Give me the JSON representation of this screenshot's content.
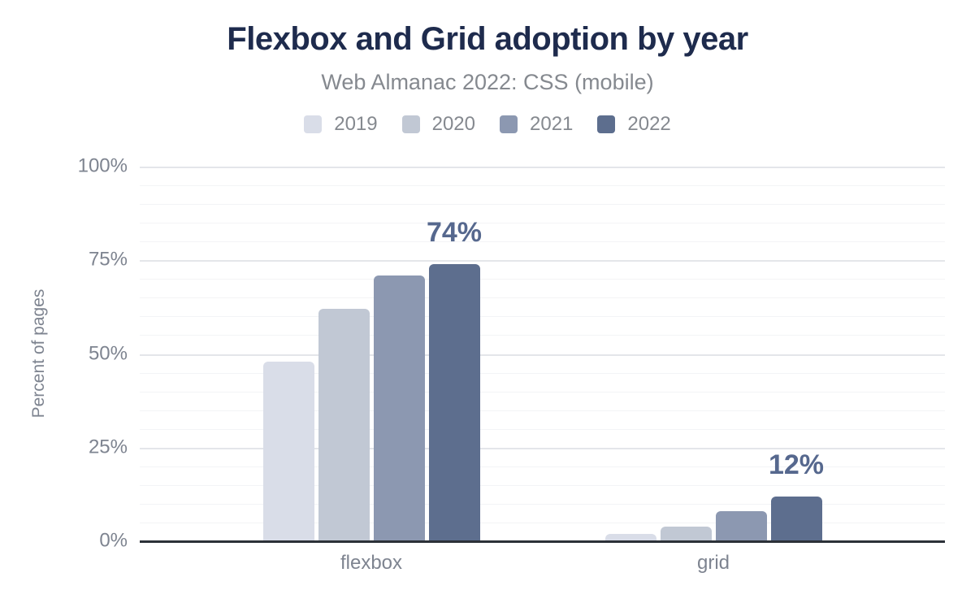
{
  "header": {
    "title": "Flexbox and Grid adoption by year",
    "subtitle": "Web Almanac 2022: CSS (mobile)"
  },
  "chart_data": {
    "type": "bar",
    "title": "Flexbox and Grid adoption by year",
    "subtitle": "Web Almanac 2022: CSS (mobile)",
    "categories": [
      "flexbox",
      "grid"
    ],
    "series": [
      {
        "name": "2019",
        "color": "#d9dde8",
        "values": [
          48,
          2
        ]
      },
      {
        "name": "2020",
        "color": "#c1c8d4",
        "values": [
          62,
          4
        ]
      },
      {
        "name": "2021",
        "color": "#8c98b1",
        "values": [
          71,
          8
        ]
      },
      {
        "name": "2022",
        "color": "#5d6e8e",
        "values": [
          74,
          12
        ]
      }
    ],
    "data_labels": [
      {
        "category": "flexbox",
        "series": "2022",
        "text": "74%"
      },
      {
        "category": "grid",
        "series": "2022",
        "text": "12%"
      }
    ],
    "xlabel": "",
    "ylabel": "Percent of pages",
    "ylim": [
      0,
      100
    ],
    "y_major_ticks": [
      {
        "value": 0,
        "label": "0%"
      },
      {
        "value": 25,
        "label": "25%"
      },
      {
        "value": 50,
        "label": "50%"
      },
      {
        "value": 75,
        "label": "75%"
      },
      {
        "value": 100,
        "label": "100%"
      }
    ],
    "y_minor_step": 5,
    "grid": "on",
    "legend_position": "top",
    "value_label_color": "#56688e",
    "axis_line_color": "#2c3138"
  }
}
